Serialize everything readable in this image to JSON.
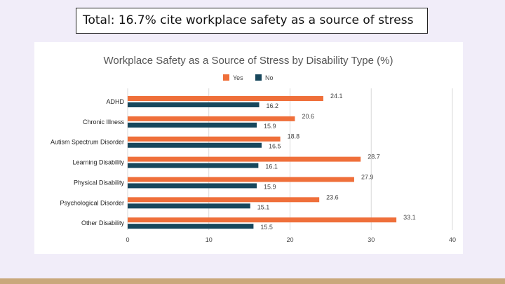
{
  "callout": {
    "text": "Total: 16.7% cite workplace safety as a source of stress"
  },
  "colors": {
    "yes": "#ef6f3a",
    "no": "#17475c",
    "grid": "#d9d9d9",
    "text": "#444444",
    "background": "#f1edf9",
    "accent_bar": "#c9a87c"
  },
  "chart_data": {
    "type": "bar",
    "orientation": "horizontal",
    "title": "Workplace Safety as a Source of Stress by Disability Type (%)",
    "xlabel": "",
    "ylabel": "",
    "categories": [
      "ADHD",
      "Chronic Illness",
      "Autism Spectrum Disorder",
      "Learning Disability",
      "Physical Disability",
      "Psychological Disorder",
      "Other Disability"
    ],
    "series": [
      {
        "name": "Yes",
        "values": [
          24.1,
          20.6,
          18.8,
          28.7,
          27.9,
          23.6,
          33.1
        ]
      },
      {
        "name": "No",
        "values": [
          16.2,
          15.9,
          16.5,
          16.1,
          15.9,
          15.1,
          15.5
        ]
      }
    ],
    "xlim": [
      0,
      40
    ],
    "xticks": [
      0,
      10,
      20,
      30,
      40
    ],
    "grid": true,
    "legend": "top"
  }
}
